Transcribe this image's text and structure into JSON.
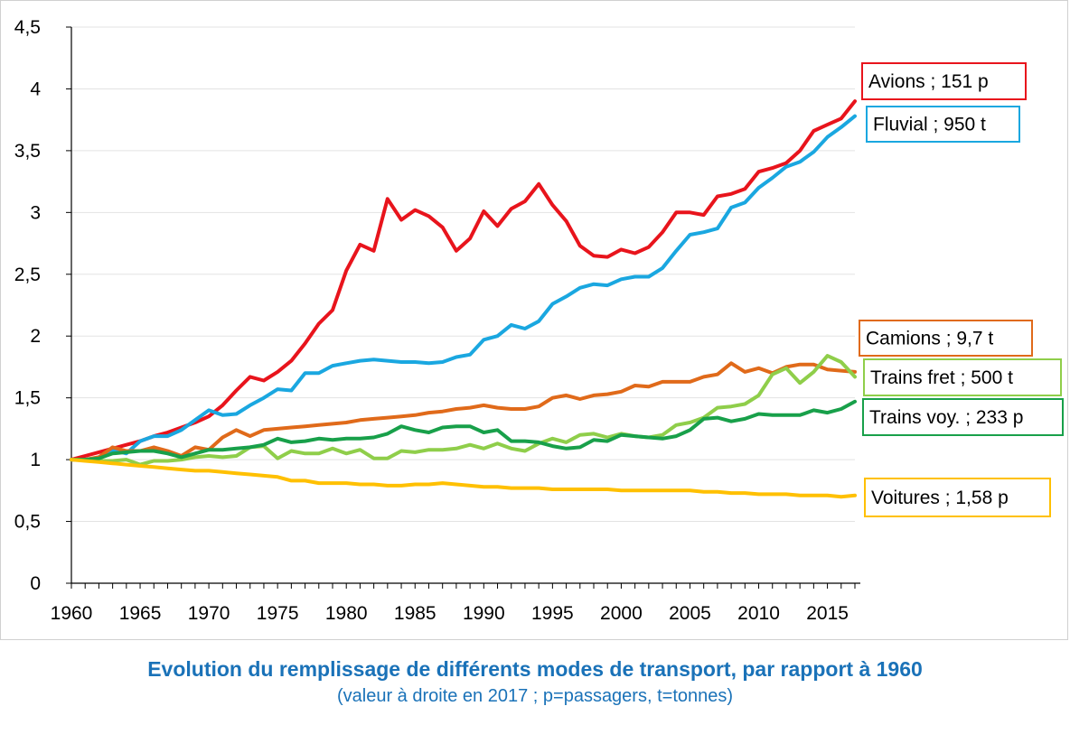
{
  "chart_data": {
    "type": "line",
    "title": "Evolution du remplissage de différents modes de transport, par rapport à 1960",
    "subtitle": "(valeur à droite en 2017 ; p=passagers, t=tonnes)",
    "xlabel": "",
    "ylabel": "",
    "xlim": [
      1960,
      2017
    ],
    "ylim": [
      0,
      4.5
    ],
    "x_ticks": [
      1960,
      1965,
      1970,
      1975,
      1980,
      1985,
      1990,
      1995,
      2000,
      2005,
      2010,
      2015
    ],
    "x_tick_labels": [
      "1960",
      "1965",
      "1970",
      "1975",
      "1980",
      "1985",
      "1990",
      "1995",
      "2000",
      "2005",
      "2010",
      "2015"
    ],
    "y_ticks": [
      0,
      0.5,
      1,
      1.5,
      2,
      2.5,
      3,
      3.5,
      4,
      4.5
    ],
    "y_tick_labels": [
      "0",
      "0,5",
      "1",
      "1,5",
      "2",
      "2,5",
      "3",
      "3,5",
      "4",
      "4,5"
    ],
    "grid": "horizontal",
    "legend_placement": "right-of-lines",
    "x": [
      1960,
      1961,
      1962,
      1963,
      1964,
      1965,
      1966,
      1967,
      1968,
      1969,
      1970,
      1971,
      1972,
      1973,
      1974,
      1975,
      1976,
      1977,
      1978,
      1979,
      1980,
      1981,
      1982,
      1983,
      1984,
      1985,
      1986,
      1987,
      1988,
      1989,
      1990,
      1991,
      1992,
      1993,
      1994,
      1995,
      1996,
      1997,
      1998,
      1999,
      2000,
      2001,
      2002,
      2003,
      2004,
      2005,
      2006,
      2007,
      2008,
      2009,
      2010,
      2011,
      2012,
      2013,
      2014,
      2015,
      2016,
      2017
    ],
    "series": [
      {
        "name": "Avions ; 151 p",
        "color": "#e8141c",
        "values": [
          1.0,
          1.03,
          1.06,
          1.09,
          1.12,
          1.15,
          1.19,
          1.22,
          1.26,
          1.3,
          1.35,
          1.44,
          1.56,
          1.67,
          1.64,
          1.71,
          1.8,
          1.94,
          2.1,
          2.21,
          2.53,
          2.74,
          2.69,
          3.11,
          2.94,
          3.02,
          2.97,
          2.88,
          2.69,
          2.79,
          3.01,
          2.89,
          3.03,
          3.09,
          3.23,
          3.06,
          2.93,
          2.73,
          2.65,
          2.64,
          2.7,
          2.67,
          2.72,
          2.84,
          3.0,
          3.0,
          2.98,
          3.13,
          3.15,
          3.19,
          3.33,
          3.36,
          3.4,
          3.5,
          3.66,
          3.71,
          3.76,
          3.9
        ]
      },
      {
        "name": "Fluvial ; 950 t",
        "color": "#1aa7e0",
        "values": [
          1.0,
          1.0,
          1.01,
          1.08,
          1.05,
          1.15,
          1.19,
          1.19,
          1.24,
          1.32,
          1.4,
          1.36,
          1.37,
          1.44,
          1.5,
          1.57,
          1.56,
          1.7,
          1.7,
          1.76,
          1.78,
          1.8,
          1.81,
          1.8,
          1.79,
          1.79,
          1.78,
          1.79,
          1.83,
          1.85,
          1.97,
          2.0,
          2.09,
          2.06,
          2.12,
          2.26,
          2.32,
          2.39,
          2.42,
          2.41,
          2.46,
          2.48,
          2.48,
          2.55,
          2.69,
          2.82,
          2.84,
          2.87,
          3.04,
          3.08,
          3.2,
          3.28,
          3.37,
          3.41,
          3.49,
          3.61,
          3.69,
          3.78
        ]
      },
      {
        "name": "Camions ; 9,7 t",
        "color": "#e06a1a",
        "values": [
          1.0,
          1.0,
          1.02,
          1.1,
          1.07,
          1.07,
          1.1,
          1.07,
          1.03,
          1.1,
          1.08,
          1.18,
          1.24,
          1.19,
          1.24,
          1.25,
          1.26,
          1.27,
          1.28,
          1.29,
          1.3,
          1.32,
          1.33,
          1.34,
          1.35,
          1.36,
          1.38,
          1.39,
          1.41,
          1.42,
          1.44,
          1.42,
          1.41,
          1.41,
          1.43,
          1.5,
          1.52,
          1.49,
          1.52,
          1.53,
          1.55,
          1.6,
          1.59,
          1.63,
          1.63,
          1.63,
          1.67,
          1.69,
          1.78,
          1.71,
          1.74,
          1.7,
          1.75,
          1.77,
          1.77,
          1.73,
          1.72,
          1.71
        ]
      },
      {
        "name": "Trains fret ; 500 t",
        "color": "#8fce4a",
        "values": [
          1.0,
          1.0,
          0.99,
          0.99,
          1.0,
          0.96,
          0.99,
          0.99,
          1.0,
          1.02,
          1.03,
          1.02,
          1.03,
          1.1,
          1.11,
          1.01,
          1.07,
          1.05,
          1.05,
          1.09,
          1.05,
          1.08,
          1.01,
          1.01,
          1.07,
          1.06,
          1.08,
          1.08,
          1.09,
          1.12,
          1.09,
          1.13,
          1.09,
          1.07,
          1.13,
          1.17,
          1.14,
          1.2,
          1.21,
          1.18,
          1.21,
          1.19,
          1.18,
          1.2,
          1.28,
          1.3,
          1.34,
          1.42,
          1.43,
          1.45,
          1.52,
          1.69,
          1.74,
          1.62,
          1.71,
          1.84,
          1.79,
          1.67
        ]
      },
      {
        "name": "Trains voy. ; 233 p",
        "color": "#18a04a",
        "values": [
          1.0,
          1.0,
          1.01,
          1.05,
          1.06,
          1.07,
          1.07,
          1.05,
          1.02,
          1.05,
          1.08,
          1.08,
          1.09,
          1.1,
          1.12,
          1.17,
          1.14,
          1.15,
          1.17,
          1.16,
          1.17,
          1.17,
          1.18,
          1.21,
          1.27,
          1.24,
          1.22,
          1.26,
          1.27,
          1.27,
          1.22,
          1.24,
          1.15,
          1.15,
          1.14,
          1.11,
          1.09,
          1.1,
          1.16,
          1.15,
          1.2,
          1.19,
          1.18,
          1.17,
          1.19,
          1.24,
          1.33,
          1.34,
          1.31,
          1.33,
          1.37,
          1.36,
          1.36,
          1.36,
          1.4,
          1.38,
          1.41,
          1.47
        ]
      },
      {
        "name": "Voitures ; 1,58 p",
        "color": "#ffc000",
        "values": [
          1.0,
          0.99,
          0.98,
          0.97,
          0.96,
          0.95,
          0.94,
          0.93,
          0.92,
          0.91,
          0.91,
          0.9,
          0.89,
          0.88,
          0.87,
          0.86,
          0.83,
          0.83,
          0.81,
          0.81,
          0.81,
          0.8,
          0.8,
          0.79,
          0.79,
          0.8,
          0.8,
          0.81,
          0.8,
          0.79,
          0.78,
          0.78,
          0.77,
          0.77,
          0.77,
          0.76,
          0.76,
          0.76,
          0.76,
          0.76,
          0.75,
          0.75,
          0.75,
          0.75,
          0.75,
          0.75,
          0.74,
          0.74,
          0.73,
          0.73,
          0.72,
          0.72,
          0.72,
          0.71,
          0.71,
          0.71,
          0.7,
          0.71
        ]
      }
    ]
  }
}
